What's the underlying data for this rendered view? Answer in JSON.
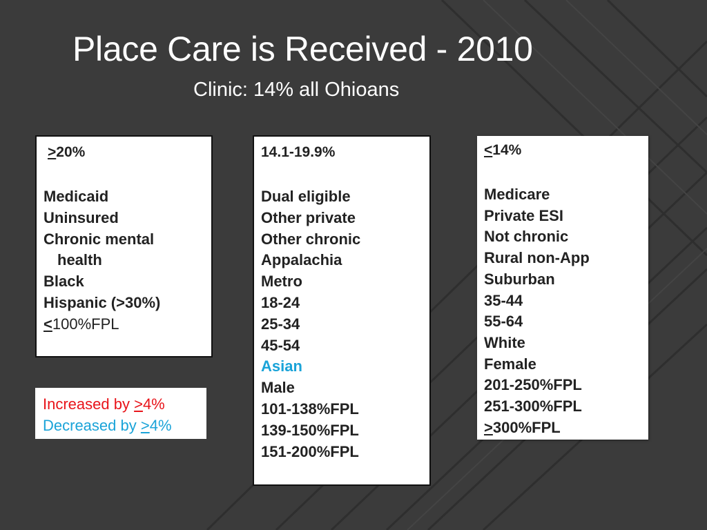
{
  "slide": {
    "title": "Place Care is Received - 2010",
    "subtitle": "Clinic: 14% all Ohioans"
  },
  "boxes": {
    "high": {
      "symbol": ">",
      "threshold": "20%",
      "items": {
        "i0": "Medicaid",
        "i1": "Uninsured",
        "i2": "Chronic mental",
        "i2b": "health",
        "i3": "Black",
        "i4": "Hispanic (>30%)",
        "i5_sym": "<",
        "i5": "100%FPL"
      }
    },
    "mid": {
      "range": "14.1-19.9%",
      "items": {
        "i0": "Dual eligible",
        "i1": "Other private",
        "i2": "Other chronic",
        "i3": "Appalachia",
        "i4": "Metro",
        "i5": "18-24",
        "i6": "25-34",
        "i7": "45-54",
        "i8": "Asian",
        "i9": "Male",
        "i10": "101-138%FPL",
        "i11": "139-150%FPL",
        "i12": "151-200%FPL"
      }
    },
    "low": {
      "symbol": "<",
      "threshold": "14%",
      "items": {
        "i0": "Medicare",
        "i1": "Private ESI",
        "i2": "Not chronic",
        "i3": "Rural non-App",
        "i4": "Suburban",
        "i5": "35-44",
        "i6": "55-64",
        "i7": "White",
        "i8": "Female",
        "i9": "201-250%FPL",
        "i10": "251-300%FPL",
        "i11_sym": ">",
        "i11": "300%FPL"
      }
    }
  },
  "legend": {
    "increased_prefix": "Increased by ",
    "increased_sym": ">",
    "increased_value": "4%",
    "decreased_prefix": "Decreased by ",
    "decreased_sym": ">",
    "decreased_value": "4%"
  },
  "colors": {
    "background": "#3b3b3b",
    "increase": "#e8141a",
    "decrease": "#1aa3d8"
  }
}
